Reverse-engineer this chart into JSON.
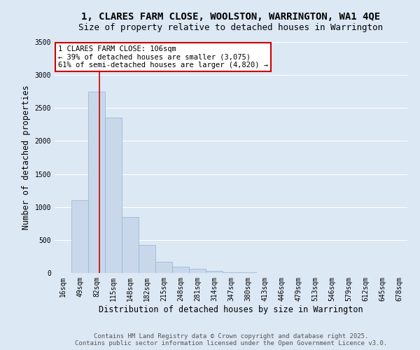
{
  "title_line1": "1, CLARES FARM CLOSE, WOOLSTON, WARRINGTON, WA1 4QE",
  "title_line2": "Size of property relative to detached houses in Warrington",
  "xlabel": "Distribution of detached houses by size in Warrington",
  "ylabel": "Number of detached properties",
  "categories": [
    "16sqm",
    "49sqm",
    "82sqm",
    "115sqm",
    "148sqm",
    "182sqm",
    "215sqm",
    "248sqm",
    "281sqm",
    "314sqm",
    "347sqm",
    "380sqm",
    "413sqm",
    "446sqm",
    "479sqm",
    "513sqm",
    "546sqm",
    "579sqm",
    "612sqm",
    "645sqm",
    "678sqm"
  ],
  "values": [
    5,
    1100,
    2750,
    2350,
    850,
    420,
    170,
    100,
    60,
    28,
    14,
    7,
    4,
    3,
    2,
    2,
    1,
    1,
    0,
    0,
    0
  ],
  "bar_color": "#c8d8ea",
  "bar_edge_color": "#90b4d4",
  "background_color": "#dce8f4",
  "grid_color": "#ffffff",
  "vline_color": "#cc0000",
  "vline_position": 2.18,
  "annotation_title": "1 CLARES FARM CLOSE: 106sqm",
  "annotation_line2": "← 39% of detached houses are smaller (3,075)",
  "annotation_line3": "61% of semi-detached houses are larger (4,820) →",
  "annotation_box_edgecolor": "#cc0000",
  "footer_line1": "Contains HM Land Registry data © Crown copyright and database right 2025.",
  "footer_line2": "Contains public sector information licensed under the Open Government Licence v3.0.",
  "ylim": [
    0,
    3500
  ],
  "yticks": [
    0,
    500,
    1000,
    1500,
    2000,
    2500,
    3000,
    3500
  ],
  "title_fontsize": 10,
  "subtitle_fontsize": 9,
  "axis_label_fontsize": 8.5,
  "tick_fontsize": 7,
  "annotation_fontsize": 7.5,
  "footer_fontsize": 6.5
}
